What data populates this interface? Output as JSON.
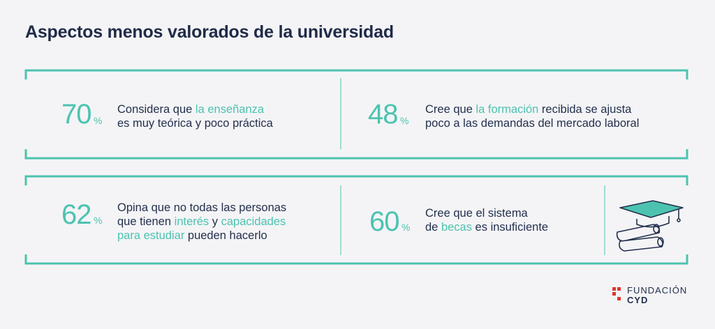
{
  "title": "Aspectos menos valorados de la universidad",
  "stats": [
    {
      "value": 70,
      "unit": "%",
      "lines": [
        [
          {
            "text": "Considera que ",
            "accent": false
          },
          {
            "text": "la enseñanza",
            "accent": true
          }
        ],
        [
          {
            "text": "es muy teórica y poco práctica",
            "accent": false
          }
        ]
      ]
    },
    {
      "value": 48,
      "unit": "%",
      "lines": [
        [
          {
            "text": "Cree que ",
            "accent": false
          },
          {
            "text": "la formación",
            "accent": true
          },
          {
            "text": " recibida se ajusta",
            "accent": false
          }
        ],
        [
          {
            "text": "poco a las demandas del mercado laboral",
            "accent": false
          }
        ]
      ]
    },
    {
      "value": 62,
      "unit": "%",
      "lines": [
        [
          {
            "text": "Opina que no todas las personas",
            "accent": false
          }
        ],
        [
          {
            "text": "que tienen ",
            "accent": false
          },
          {
            "text": "interés",
            "accent": true
          },
          {
            "text": " y ",
            "accent": false
          },
          {
            "text": "capacidades",
            "accent": true
          }
        ],
        [
          {
            "text": "para estudiar",
            "accent": true
          },
          {
            "text": " pueden hacerlo",
            "accent": false
          }
        ]
      ]
    },
    {
      "value": 60,
      "unit": "%",
      "lines": [
        [
          {
            "text": "Cree que el sistema",
            "accent": false
          }
        ],
        [
          {
            "text": "de ",
            "accent": false
          },
          {
            "text": "becas",
            "accent": true
          },
          {
            "text": " es insuficiente",
            "accent": false
          }
        ]
      ]
    }
  ],
  "logo": {
    "name": "FUNDACIÓN",
    "short": "CYD"
  }
}
